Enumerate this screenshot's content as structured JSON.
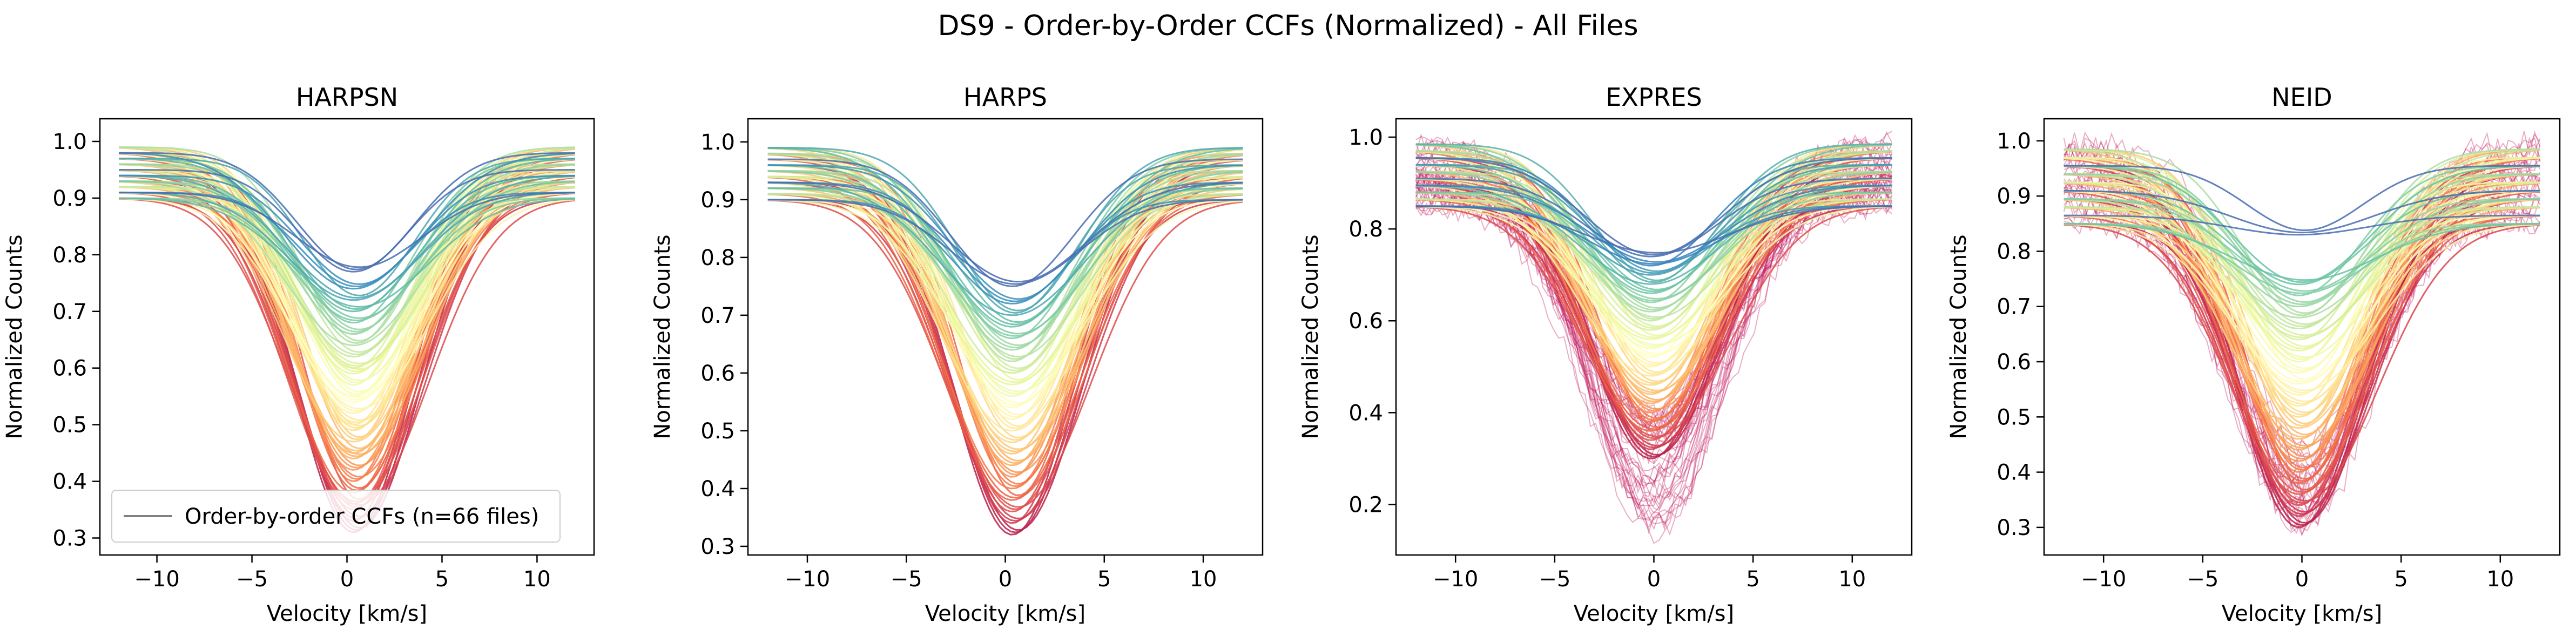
{
  "suptitle": "DS9 - Order-by-Order CCFs (Normalized) - All Files",
  "chart_data": [
    {
      "type": "line",
      "title": "HARPSN",
      "xlabel": "Velocity [km/s]",
      "ylabel": "Normalized Counts",
      "xlim": [
        -13,
        13
      ],
      "ylim": [
        0.27,
        1.04
      ],
      "xticks": [
        -10,
        -5,
        0,
        5,
        10
      ],
      "yticks": [
        0.3,
        0.4,
        0.5,
        0.6,
        0.7,
        0.8,
        0.9,
        1.0
      ],
      "xtick_labels": [
        "−10",
        "−5",
        "0",
        "5",
        "10"
      ],
      "ytick_labels": [
        "0.3",
        "0.4",
        "0.5",
        "0.6",
        "0.7",
        "0.8",
        "0.9",
        "1.0"
      ],
      "colormap": "Spectral",
      "legend": {
        "label": "Order-by-order CCFs (n=66 files)",
        "placement": "lower-left",
        "color": "#808080"
      },
      "x_range": [
        -12,
        12
      ],
      "center": 0.5,
      "series_minima": [
        0.31,
        0.33,
        0.35,
        0.36,
        0.38,
        0.4,
        0.42,
        0.44,
        0.45,
        0.47,
        0.49,
        0.5,
        0.52,
        0.54,
        0.55,
        0.57,
        0.59,
        0.6,
        0.62,
        0.64,
        0.66,
        0.68,
        0.7,
        0.72,
        0.74,
        0.77
      ],
      "noisy_copies": 0,
      "continuum": [
        0.9,
        1.0
      ]
    },
    {
      "type": "line",
      "title": "HARPS",
      "xlabel": "Velocity [km/s]",
      "ylabel": "Normalized Counts",
      "xlim": [
        -13,
        13
      ],
      "ylim": [
        0.285,
        1.04
      ],
      "xticks": [
        -10,
        -5,
        0,
        5,
        10
      ],
      "yticks": [
        0.3,
        0.4,
        0.5,
        0.6,
        0.7,
        0.8,
        0.9,
        1.0
      ],
      "xtick_labels": [
        "−10",
        "−5",
        "0",
        "5",
        "10"
      ],
      "ytick_labels": [
        "0.3",
        "0.4",
        "0.5",
        "0.6",
        "0.7",
        "0.8",
        "0.9",
        "1.0"
      ],
      "colormap": "Spectral",
      "x_range": [
        -12,
        12
      ],
      "center": 0.5,
      "series_minima": [
        0.32,
        0.34,
        0.36,
        0.38,
        0.4,
        0.42,
        0.44,
        0.46,
        0.48,
        0.5,
        0.52,
        0.54,
        0.56,
        0.58,
        0.6,
        0.62,
        0.64,
        0.66,
        0.68,
        0.7,
        0.72,
        0.75
      ],
      "noisy_copies": 0,
      "continuum": [
        0.9,
        1.0
      ]
    },
    {
      "type": "line",
      "title": "EXPRES",
      "xlabel": "Velocity [km/s]",
      "ylabel": "Normalized Counts",
      "xlim": [
        -13,
        13
      ],
      "ylim": [
        0.09,
        1.04
      ],
      "xticks": [
        -10,
        -5,
        0,
        5,
        10
      ],
      "yticks": [
        0.2,
        0.4,
        0.6,
        0.8,
        1.0
      ],
      "xtick_labels": [
        "−10",
        "−5",
        "0",
        "5",
        "10"
      ],
      "ytick_labels": [
        "0.2",
        "0.4",
        "0.6",
        "0.8",
        "1.0"
      ],
      "colormap": "Spectral",
      "x_range": [
        -12,
        12
      ],
      "center": 0.0,
      "series_minima": [
        0.3,
        0.32,
        0.34,
        0.36,
        0.38,
        0.4,
        0.42,
        0.44,
        0.46,
        0.48,
        0.5,
        0.52,
        0.54,
        0.56,
        0.58,
        0.6,
        0.62,
        0.64,
        0.66,
        0.68,
        0.7,
        0.72,
        0.74
      ],
      "noisy_copies": 40,
      "noisy_minimum_range": [
        0.14,
        0.4
      ],
      "continuum": [
        0.85,
        1.0
      ]
    },
    {
      "type": "line",
      "title": "NEID",
      "xlabel": "Velocity [km/s]",
      "ylabel": "Normalized Counts",
      "xlim": [
        -13,
        13
      ],
      "ylim": [
        0.25,
        1.04
      ],
      "xticks": [
        -10,
        -5,
        0,
        5,
        10
      ],
      "yticks": [
        0.3,
        0.4,
        0.5,
        0.6,
        0.7,
        0.8,
        0.9,
        1.0
      ],
      "xtick_labels": [
        "−10",
        "−5",
        "0",
        "5",
        "10"
      ],
      "ytick_labels": [
        "0.3",
        "0.4",
        "0.5",
        "0.6",
        "0.7",
        "0.8",
        "0.9",
        "1.0"
      ],
      "colormap": "Spectral",
      "x_range": [
        -12,
        12
      ],
      "center": 0.0,
      "series_minima": [
        0.3,
        0.32,
        0.34,
        0.36,
        0.38,
        0.4,
        0.42,
        0.44,
        0.46,
        0.48,
        0.5,
        0.52,
        0.54,
        0.56,
        0.58,
        0.6,
        0.62,
        0.64,
        0.66,
        0.68,
        0.7,
        0.72,
        0.74,
        0.83
      ],
      "noisy_copies": 25,
      "noisy_minimum_range": [
        0.3,
        0.45
      ],
      "continuum": [
        0.85,
        1.0
      ]
    }
  ]
}
